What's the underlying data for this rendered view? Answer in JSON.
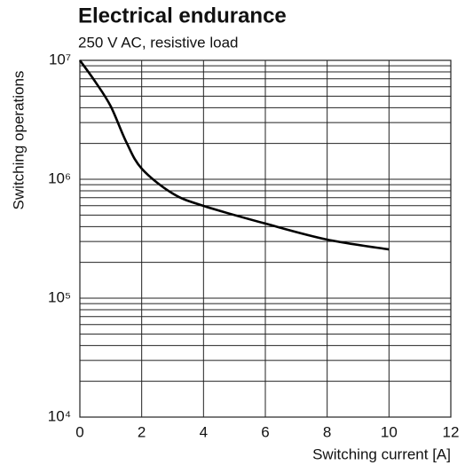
{
  "chart_data": {
    "type": "line",
    "title": "Electrical endurance",
    "subtitle": "250 V AC, resistive load",
    "x_label": "Switching current [A]",
    "y_label": "Switching operations",
    "x": [
      0,
      0.5,
      1,
      1.5,
      2,
      3,
      4,
      6,
      8,
      10
    ],
    "values": [
      10000000,
      6600000,
      4100000,
      2060000,
      1230000,
      760000,
      597000,
      424000,
      311000,
      257000
    ],
    "color": "#000000",
    "xlim": [
      0,
      12
    ],
    "xticks": [
      0,
      2,
      4,
      6,
      8,
      10,
      12
    ],
    "ylim": [
      10000,
      10000000
    ],
    "yticks": [
      {
        "value": 10000,
        "label": "10⁴"
      },
      {
        "value": 100000,
        "label": "10⁵"
      },
      {
        "value": 1000000,
        "label": "10⁶"
      },
      {
        "value": 10000000,
        "label": "10⁷"
      }
    ],
    "ylog": true,
    "grid": true,
    "minor_grid": true
  }
}
